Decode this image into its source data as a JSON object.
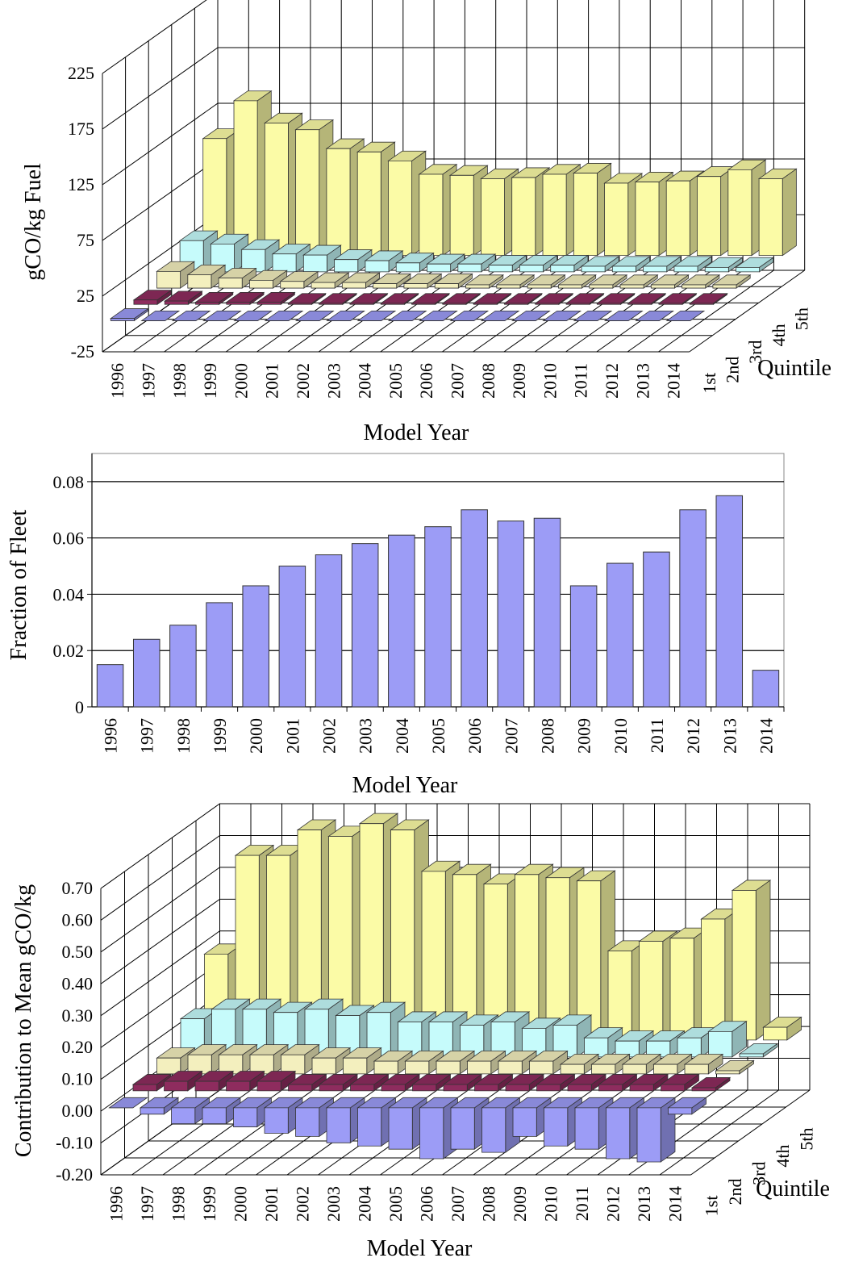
{
  "colors": {
    "q1": "#9c9cf6",
    "q2": "#8e2c5e",
    "q3": "#f3efbe",
    "q4": "#c6fbfb",
    "q5": "#fbfba6",
    "gridline": "#000000"
  },
  "chart_data": [
    {
      "type": "bar3d",
      "ylabel": "gCO/kg Fuel",
      "xlabel": "Model Year",
      "zlabel": "Quintile",
      "categories": [
        "1996",
        "1997",
        "1998",
        "1999",
        "2000",
        "2001",
        "2002",
        "2003",
        "2004",
        "2005",
        "2006",
        "2007",
        "2008",
        "2009",
        "2010",
        "2011",
        "2012",
        "2013",
        "2014"
      ],
      "quintiles": [
        "1st",
        "2nd",
        "3rd",
        "4th",
        "5th"
      ],
      "yticks": [
        "-25",
        "25",
        "75",
        "125",
        "175",
        "225"
      ],
      "ylim": [
        -25,
        225
      ],
      "series": [
        {
          "name": "1st",
          "values": [
            2,
            0,
            0,
            0,
            0,
            0,
            0,
            0,
            0,
            0,
            0,
            0,
            0,
            0,
            0,
            0,
            0,
            0,
            0
          ]
        },
        {
          "name": "2nd",
          "values": [
            4,
            3,
            2,
            2,
            2,
            1,
            1,
            1,
            1,
            1,
            1,
            1,
            1,
            1,
            1,
            1,
            1,
            1,
            1
          ]
        },
        {
          "name": "3rd",
          "values": [
            15,
            12,
            9,
            7,
            6,
            5,
            5,
            4,
            4,
            4,
            3,
            3,
            3,
            3,
            3,
            3,
            3,
            3,
            3
          ]
        },
        {
          "name": "4th",
          "values": [
            28,
            25,
            20,
            16,
            15,
            11,
            10,
            8,
            7,
            7,
            6,
            6,
            6,
            5,
            5,
            5,
            5,
            4,
            4
          ]
        },
        {
          "name": "5th",
          "values": [
            105,
            139,
            119,
            113,
            96,
            93,
            85,
            73,
            72,
            69,
            70,
            73,
            74,
            65,
            66,
            67,
            71,
            77,
            69
          ]
        }
      ]
    },
    {
      "type": "bar",
      "ylabel": "Fraction of Fleet",
      "xlabel": "Model Year",
      "categories": [
        "1996",
        "1997",
        "1998",
        "1999",
        "2000",
        "2001",
        "2002",
        "2003",
        "2004",
        "2005",
        "2006",
        "2007",
        "2008",
        "2009",
        "2010",
        "2011",
        "2012",
        "2013",
        "2014"
      ],
      "values": [
        0.015,
        0.024,
        0.029,
        0.037,
        0.043,
        0.05,
        0.054,
        0.058,
        0.061,
        0.064,
        0.07,
        0.066,
        0.067,
        0.043,
        0.051,
        0.055,
        0.07,
        0.075,
        0.013
      ],
      "yticks": [
        "0",
        "0.02",
        "0.04",
        "0.06",
        "0.08"
      ],
      "ylim": [
        0,
        0.09
      ]
    },
    {
      "type": "bar3d",
      "ylabel": "Contribution to Mean gCO/kg",
      "xlabel": "Model Year",
      "zlabel": "Quintile",
      "categories": [
        "1996",
        "1997",
        "1998",
        "1999",
        "2000",
        "2001",
        "2002",
        "2003",
        "2004",
        "2005",
        "2006",
        "2007",
        "2008",
        "2009",
        "2010",
        "2011",
        "2012",
        "2013",
        "2014"
      ],
      "quintiles": [
        "1st",
        "2nd",
        "3rd",
        "4th",
        "5th"
      ],
      "yticks": [
        "-0.20",
        "-0.10",
        "0.00",
        "0.10",
        "0.20",
        "0.30",
        "0.40",
        "0.50",
        "0.60",
        "0.70"
      ],
      "ylim": [
        -0.2,
        0.7
      ],
      "series": [
        {
          "name": "1st",
          "values": [
            0.0,
            -0.02,
            -0.05,
            -0.05,
            -0.06,
            -0.08,
            -0.09,
            -0.11,
            -0.12,
            -0.13,
            -0.16,
            -0.13,
            -0.14,
            -0.09,
            -0.12,
            -0.13,
            -0.16,
            -0.17,
            -0.02
          ]
        },
        {
          "name": "2nd",
          "values": [
            0.02,
            0.03,
            0.03,
            0.03,
            0.03,
            0.02,
            0.02,
            0.02,
            0.02,
            0.02,
            0.02,
            0.02,
            0.02,
            0.02,
            0.02,
            0.02,
            0.02,
            0.02,
            0.01
          ]
        },
        {
          "name": "3rd",
          "values": [
            0.05,
            0.06,
            0.06,
            0.06,
            0.06,
            0.05,
            0.05,
            0.04,
            0.04,
            0.04,
            0.04,
            0.04,
            0.04,
            0.03,
            0.03,
            0.03,
            0.03,
            0.03,
            0.01
          ]
        },
        {
          "name": "4th",
          "values": [
            0.12,
            0.15,
            0.15,
            0.14,
            0.15,
            0.13,
            0.14,
            0.11,
            0.11,
            0.1,
            0.11,
            0.09,
            0.1,
            0.06,
            0.05,
            0.05,
            0.06,
            0.08,
            0.01
          ]
        },
        {
          "name": "5th",
          "values": [
            0.27,
            0.58,
            0.58,
            0.66,
            0.64,
            0.68,
            0.66,
            0.53,
            0.52,
            0.49,
            0.52,
            0.51,
            0.5,
            0.28,
            0.31,
            0.32,
            0.38,
            0.47,
            0.04
          ]
        }
      ]
    }
  ]
}
